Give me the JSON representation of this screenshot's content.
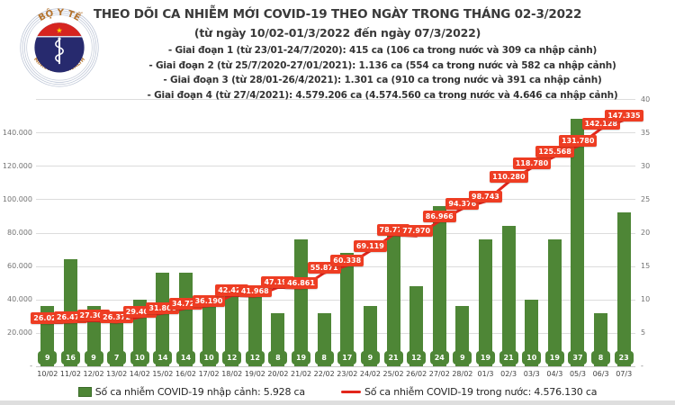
{
  "logo": {
    "top_text": "BỘ Y TẾ",
    "bottom_text": "MINISTRY OF HEALTH"
  },
  "header": {
    "title": "THEO DÕI CA NHIỄM MỚI COVID-19 THEO NGÀY TRONG THÁNG 02-3/2022",
    "subtitle": "(từ ngày 10/02-01/3/2022 đến ngày 07/3/2022)",
    "phases": [
      "- Giai đoạn 1 (từ 23/01-24/7/2020): 415 ca (106 ca trong nước và 309 ca nhập cảnh)",
      "- Giai đoạn 2 (từ 25/7/2020-27/01/2021): 1.136 ca (554 ca trong nước và 582 ca nhập cảnh)",
      "- Giai đoạn 3 (từ 28/01-26/4/2021): 1.301 ca (910 ca trong nước và 391 ca nhập cảnh)",
      "- Giai đoạn 4 (từ 27/4/2021): 4.579.206 ca (4.574.560 ca trong nước và 4.646 ca nhập cảnh)"
    ]
  },
  "chart_data": {
    "type": "bar+line combo",
    "categories": [
      "10/02",
      "11/02",
      "12/02",
      "13/02",
      "14/02",
      "15/02",
      "16/02",
      "17/02",
      "18/02",
      "19/02",
      "20/02",
      "21/02",
      "22/02",
      "23/02",
      "24/02",
      "25/02",
      "26/02",
      "27/02",
      "28/02",
      "01/3",
      "02/3",
      "03/3",
      "04/3",
      "05/3",
      "06/3",
      "07/3"
    ],
    "series": [
      {
        "name": "Số ca nhiễm COVID-19 nhập cảnh",
        "type": "bar",
        "axis": "right",
        "color": "#4e8636",
        "values": [
          9,
          16,
          9,
          7,
          10,
          14,
          14,
          10,
          12,
          12,
          8,
          19,
          8,
          17,
          9,
          21,
          12,
          24,
          9,
          19,
          21,
          10,
          19,
          37,
          8,
          23
        ]
      },
      {
        "name": "Số ca nhiễm COVID-19 trong nước",
        "type": "line",
        "axis": "left",
        "color": "#e2261b",
        "label_bg": "#ee3d23",
        "labels": [
          "26.023",
          "26.471",
          "27.302",
          "26.372",
          "29.403",
          "31.800",
          "34.723",
          "36.190",
          "42.427",
          "41.968",
          "47.192",
          "46.861",
          "55.871",
          "60.338",
          "69.119",
          "78.774",
          "77.970",
          "86.966",
          "94.376",
          "98.743",
          "110.280",
          "118.780",
          "125.568",
          "131.780",
          "142.128",
          "147.335"
        ]
      }
    ],
    "left_axis": {
      "ticks": [
        "20.000",
        "40.000",
        "60.000",
        "80.000",
        "100.000",
        "120.000",
        "140.000"
      ],
      "max": 160000,
      "zero_label": "-"
    },
    "right_axis": {
      "ticks": [
        "5",
        "10",
        "15",
        "20",
        "25",
        "30",
        "35",
        "40"
      ],
      "max": 40,
      "zero_label": "-"
    },
    "grid": true,
    "legend_position": "bottom"
  },
  "legend": {
    "bar": {
      "label": "Số ca nhiễm COVID-19 nhập cảnh: 5.928 ca",
      "color": "#4e8636"
    },
    "line": {
      "label": "Số ca nhiễm COVID-19 trong nước: 4.576.130 ca",
      "color": "#e2261b"
    }
  }
}
